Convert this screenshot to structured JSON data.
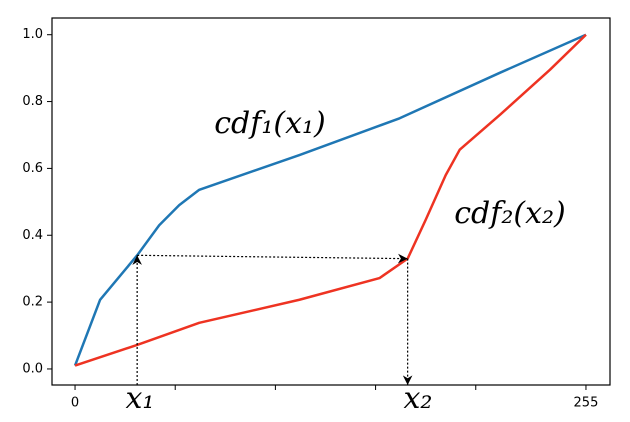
{
  "chart_data": {
    "type": "line",
    "series": [
      {
        "color": "#1f77b4",
        "x": [
          0,
          12.5,
          31,
          42,
          52,
          62,
          112,
          162,
          212,
          255
        ],
        "values": [
          0.01,
          0.207,
          0.34,
          0.43,
          0.49,
          0.536,
          0.64,
          0.75,
          0.886,
          1.0
        ]
      },
      {
        "color": "#ee3322",
        "x": [
          0,
          31,
          62,
          112,
          152,
          166,
          175,
          185,
          192,
          212,
          237,
          255
        ],
        "values": [
          0.01,
          0.072,
          0.138,
          0.207,
          0.272,
          0.33,
          0.446,
          0.58,
          0.656,
          0.76,
          0.895,
          1.0
        ]
      }
    ],
    "annotations": [
      "cdf₁(x₁)",
      "cdf₂(x₂)",
      "x₁",
      "x₂"
    ],
    "arrows": [
      {
        "from": [
          31,
          -0.048
        ],
        "to": [
          31,
          0.34
        ]
      },
      {
        "from": [
          31,
          0.34
        ],
        "to": [
          166,
          0.33
        ]
      },
      {
        "from": [
          166,
          0.33
        ],
        "to": [
          166,
          -0.048
        ]
      }
    ],
    "xlim": [
      -11.5,
      267
    ],
    "ylim": [
      -0.048,
      1.05
    ],
    "xticks": [
      0,
      255
    ],
    "unlabeled_xticks": [
      50,
      100,
      150,
      200
    ],
    "yticks": [
      {
        "value": 0,
        "label": "0.0"
      },
      {
        "value": 0.2,
        "label": "0.2"
      },
      {
        "value": 0.4,
        "label": "0.4"
      },
      {
        "value": 0.6,
        "label": "0.6"
      },
      {
        "value": 0.8,
        "label": "0.8"
      },
      {
        "value": 1.0,
        "label": "1.0"
      }
    ]
  }
}
